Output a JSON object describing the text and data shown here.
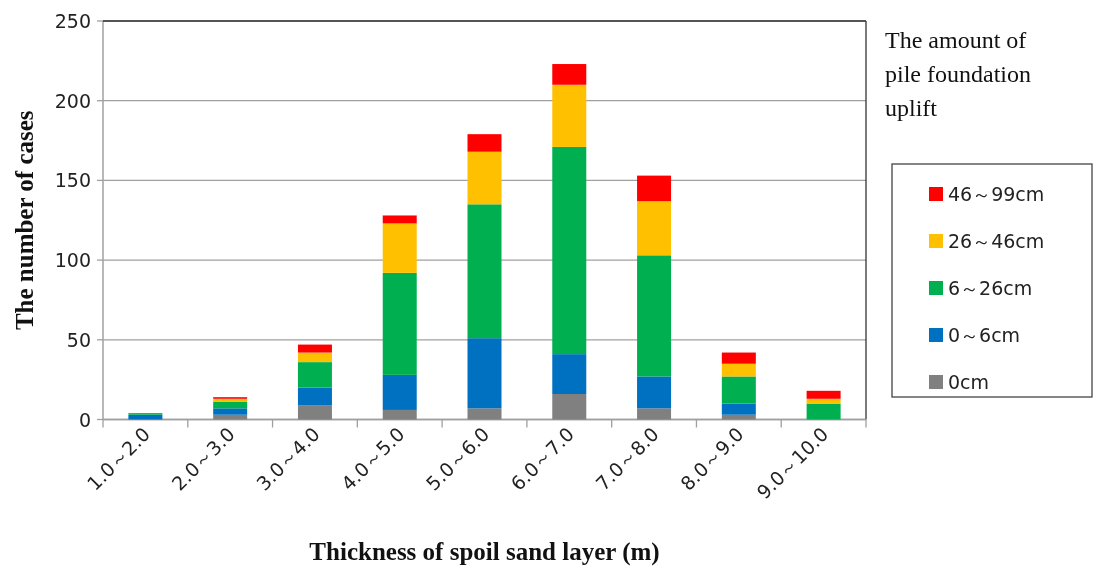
{
  "chart_data": {
    "type": "bar",
    "stacked": true,
    "categories": [
      "1.0～2.0",
      "2.0～3.0",
      "3.0～4.0",
      "4.0～5.0",
      "5.0～6.0",
      "6.0～7.0",
      "7.0～8.0",
      "8.0～9.0",
      "9.0～10.0"
    ],
    "series": [
      {
        "name": "0cm",
        "color": "#808080",
        "values": [
          0,
          3,
          9,
          6,
          7,
          16,
          7,
          3,
          0
        ]
      },
      {
        "name": "0～6cm",
        "color": "#0070c0",
        "values": [
          3,
          4,
          11,
          22,
          44,
          25,
          20,
          7,
          0
        ]
      },
      {
        "name": "6～26cm",
        "color": "#00b050",
        "values": [
          1,
          4,
          16,
          64,
          84,
          130,
          76,
          17,
          10
        ]
      },
      {
        "name": "26～46cm",
        "color": "#ffc000",
        "values": [
          0,
          2,
          6,
          31,
          33,
          39,
          34,
          8,
          3
        ]
      },
      {
        "name": "46～99cm",
        "color": "#ff0000",
        "values": [
          0,
          1,
          5,
          5,
          11,
          13,
          16,
          7,
          5
        ]
      }
    ],
    "xlabel": "Thickness of spoil sand layer  (m)",
    "ylabel": "The number of cases",
    "legend_title": "The amount of pile foundation uplift",
    "ylim": [
      0,
      250
    ],
    "yticks": [
      0,
      50,
      100,
      150,
      200,
      250
    ],
    "grid": "y",
    "legend": "right"
  }
}
